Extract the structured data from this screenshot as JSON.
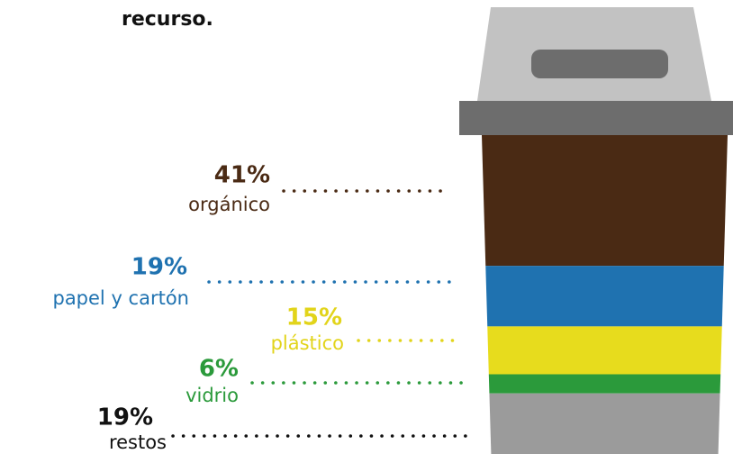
{
  "chart_data": {
    "type": "stacked-bin",
    "title": "recurso.",
    "categories": [
      "orgánico",
      "papel y cartón",
      "plástico",
      "vidrio",
      "restos"
    ],
    "values": [
      41,
      19,
      15,
      6,
      19
    ],
    "value_labels": [
      "41%",
      "19%",
      "15%",
      "6%",
      "19%"
    ],
    "colors": [
      "#4a2a14",
      "#1f72b0",
      "#e7dc1d",
      "#2b9a3b",
      "#9b9b9b"
    ],
    "label_colors": [
      "#4a2a14",
      "#1f72b0",
      "#e2d41a",
      "#2b9a3b",
      "#111111"
    ]
  }
}
